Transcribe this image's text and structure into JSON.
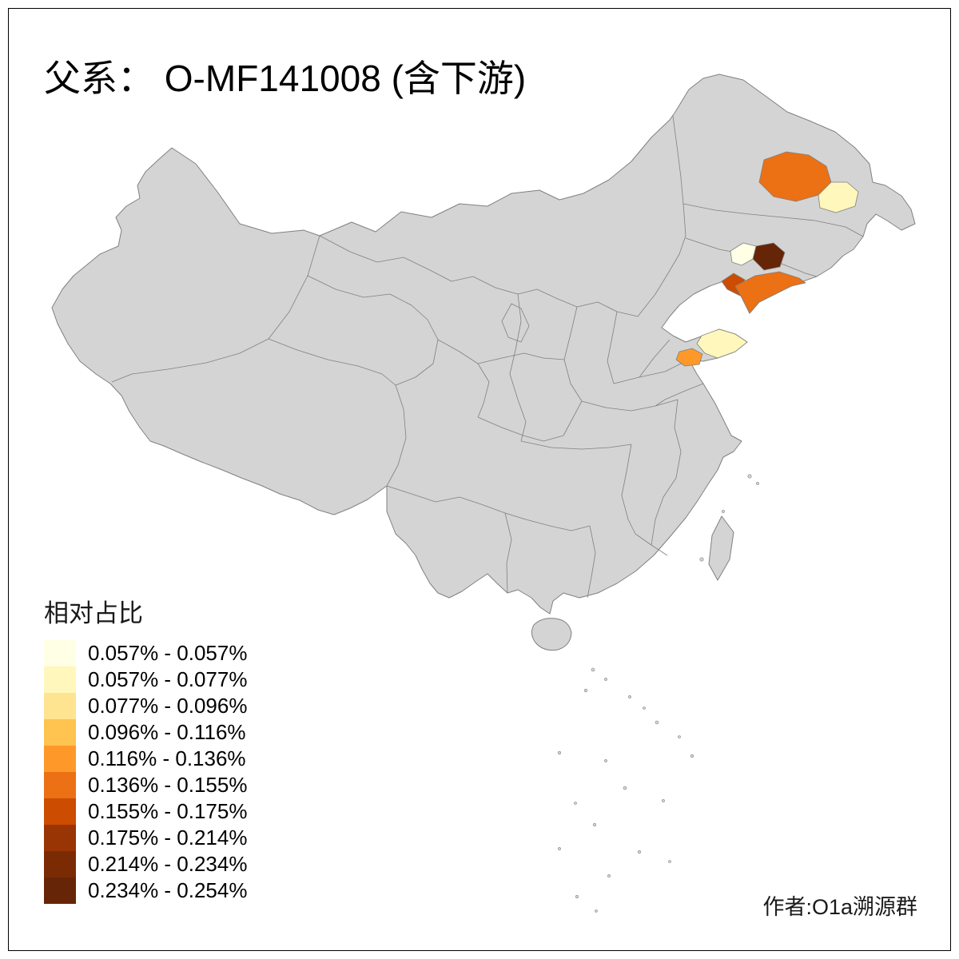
{
  "title": "父系： O-MF141008 (含下游)",
  "legend": {
    "title": "相对占比",
    "classes": [
      {
        "color": "#FFFFE5",
        "label": "0.057% - 0.057%"
      },
      {
        "color": "#FFF7BC",
        "label": "0.057% - 0.077%"
      },
      {
        "color": "#FEE391",
        "label": "0.077% - 0.096%"
      },
      {
        "color": "#FEC44F",
        "label": "0.096% - 0.116%"
      },
      {
        "color": "#FE9929",
        "label": "0.116% - 0.136%"
      },
      {
        "color": "#EC7014",
        "label": "0.136% - 0.155%"
      },
      {
        "color": "#CC4C02",
        "label": "0.155% - 0.175%"
      },
      {
        "color": "#993404",
        "label": "0.175% - 0.214%"
      },
      {
        "color": "#7A2B04",
        "label": "0.214% - 0.234%"
      },
      {
        "color": "#662506",
        "label": "0.234% - 0.254%"
      }
    ]
  },
  "attribution": "作者:O1a溯源群",
  "map": {
    "land_fill": "#D4D4D4",
    "border_color": "#808080",
    "background": "#FFFFFF",
    "regions": [
      {
        "id": "heilongjiang-central",
        "color": "#EC7014"
      },
      {
        "id": "heilongjiang-east",
        "color": "#FFF7BC"
      },
      {
        "id": "liaoning-northeast",
        "color": "#662506"
      },
      {
        "id": "liaoning-central",
        "color": "#FFFFE5"
      },
      {
        "id": "liaoning-coast-small",
        "color": "#CC4C02"
      },
      {
        "id": "liaodong-peninsula",
        "color": "#EC7014"
      },
      {
        "id": "shandong-peninsula",
        "color": "#FFF7BC"
      },
      {
        "id": "shandong-coast-small",
        "color": "#FE9929"
      }
    ]
  }
}
